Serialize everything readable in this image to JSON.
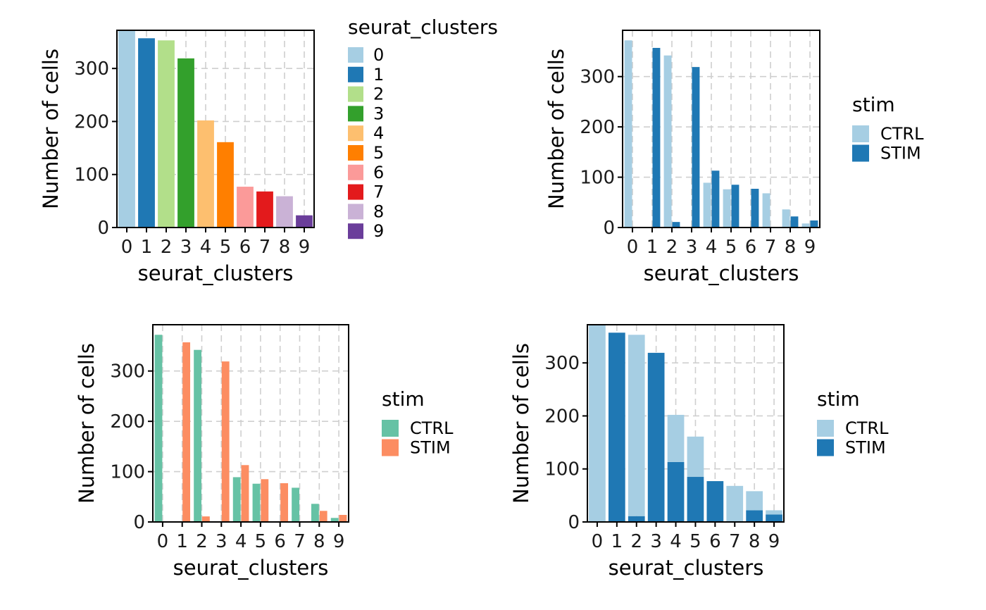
{
  "chart_data": [
    {
      "type": "bar",
      "subtype": "simple",
      "xlabel": "seurat_clusters",
      "ylabel": "Number of cells",
      "categories": [
        "0",
        "1",
        "2",
        "3",
        "4",
        "5",
        "6",
        "7",
        "8",
        "9"
      ],
      "values": [
        372,
        357,
        353,
        319,
        202,
        161,
        77,
        68,
        59,
        23
      ],
      "ylim": [
        0,
        372
      ],
      "yticks": [
        0,
        100,
        200,
        300
      ],
      "grid": true,
      "legend": {
        "title": "seurat_clusters",
        "placement": "right",
        "items": [
          "0",
          "1",
          "2",
          "3",
          "4",
          "5",
          "6",
          "7",
          "8",
          "9"
        ]
      },
      "colors": [
        "#A6CEE3",
        "#1F78B4",
        "#B2DF8A",
        "#33A02C",
        "#FDBF6F",
        "#FF7F00",
        "#FB9A99",
        "#E31A1C",
        "#CAB2D6",
        "#6A3D9A"
      ]
    },
    {
      "type": "bar",
      "subtype": "dodge",
      "xlabel": "seurat_clusters",
      "ylabel": "Number of cells",
      "categories": [
        "0",
        "1",
        "2",
        "3",
        "4",
        "5",
        "6",
        "7",
        "8",
        "9"
      ],
      "series": [
        {
          "name": "CTRL",
          "values": [
            372,
            0,
            342,
            0,
            89,
            76,
            0,
            68,
            36,
            8
          ]
        },
        {
          "name": "STIM",
          "values": [
            0,
            357,
            11,
            319,
            113,
            85,
            77,
            0,
            22,
            14
          ]
        }
      ],
      "ylim": [
        0,
        392
      ],
      "yticks": [
        0,
        100,
        200,
        300
      ],
      "grid": true,
      "legend": {
        "title": "stim",
        "placement": "right",
        "items": [
          "CTRL",
          "STIM"
        ]
      },
      "colors": [
        "#A6CEE3",
        "#1F78B4"
      ]
    },
    {
      "type": "bar",
      "subtype": "dodge",
      "xlabel": "seurat_clusters",
      "ylabel": "Number of cells",
      "categories": [
        "0",
        "1",
        "2",
        "3",
        "4",
        "5",
        "6",
        "7",
        "8",
        "9"
      ],
      "series": [
        {
          "name": "CTRL",
          "values": [
            372,
            0,
            342,
            0,
            89,
            76,
            0,
            68,
            36,
            8
          ]
        },
        {
          "name": "STIM",
          "values": [
            0,
            357,
            11,
            319,
            113,
            85,
            77,
            0,
            22,
            14
          ]
        }
      ],
      "ylim": [
        0,
        392
      ],
      "yticks": [
        0,
        100,
        200,
        300
      ],
      "grid": true,
      "legend": {
        "title": "stim",
        "placement": "right",
        "items": [
          "CTRL",
          "STIM"
        ]
      },
      "colors": [
        "#66C2A5",
        "#FC8D62"
      ]
    },
    {
      "type": "bar",
      "subtype": "stack",
      "xlabel": "seurat_clusters",
      "ylabel": "Number of cells",
      "categories": [
        "0",
        "1",
        "2",
        "3",
        "4",
        "5",
        "6",
        "7",
        "8",
        "9"
      ],
      "series": [
        {
          "name": "CTRL",
          "values": [
            372,
            0,
            342,
            0,
            89,
            76,
            0,
            68,
            36,
            8
          ]
        },
        {
          "name": "STIM",
          "values": [
            0,
            357,
            11,
            319,
            113,
            85,
            77,
            0,
            22,
            14
          ]
        }
      ],
      "ylim": [
        0,
        372
      ],
      "yticks": [
        0,
        100,
        200,
        300
      ],
      "grid": true,
      "legend": {
        "title": "stim",
        "placement": "right",
        "items": [
          "CTRL",
          "STIM"
        ]
      },
      "colors": [
        "#A6CEE3",
        "#1F78B4"
      ]
    }
  ]
}
